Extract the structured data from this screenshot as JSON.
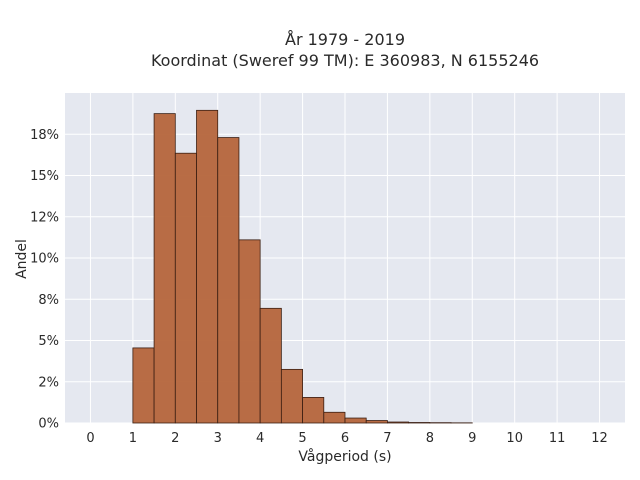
{
  "chart_data": {
    "type": "bar",
    "title_line1": "År 1979 - 2019",
    "title_line2": "Koordinat (Sweref 99 TM): E 360983, N 6155246",
    "xlabel": "Vågperiod (s)",
    "ylabel": "Andel",
    "xlim": [
      -0.6,
      12.6
    ],
    "ylim": [
      0,
      0.2
    ],
    "x_ticks": [
      0,
      1,
      2,
      3,
      4,
      5,
      6,
      7,
      8,
      9,
      10,
      11,
      12
    ],
    "x_tick_labels": [
      "0",
      "1",
      "2",
      "3",
      "4",
      "5",
      "6",
      "7",
      "8",
      "9",
      "10",
      "11",
      "12"
    ],
    "y_ticks": [
      0,
      0.025,
      0.05,
      0.075,
      0.1,
      0.125,
      0.15,
      0.175
    ],
    "y_tick_labels": [
      "0%",
      "2%",
      "5%",
      "8%",
      "10%",
      "12%",
      "15%",
      "18%"
    ],
    "bin_width": 0.5,
    "bins": [
      {
        "x0": 1.0,
        "x1": 1.5,
        "value": 0.0455
      },
      {
        "x0": 1.5,
        "x1": 2.0,
        "value": 0.1875
      },
      {
        "x0": 2.0,
        "x1": 2.5,
        "value": 0.1635
      },
      {
        "x0": 2.5,
        "x1": 3.0,
        "value": 0.1895
      },
      {
        "x0": 3.0,
        "x1": 3.5,
        "value": 0.173
      },
      {
        "x0": 3.5,
        "x1": 4.0,
        "value": 0.111
      },
      {
        "x0": 4.0,
        "x1": 4.5,
        "value": 0.0695
      },
      {
        "x0": 4.5,
        "x1": 5.0,
        "value": 0.0325
      },
      {
        "x0": 5.0,
        "x1": 5.5,
        "value": 0.0155
      },
      {
        "x0": 5.5,
        "x1": 6.0,
        "value": 0.0065
      },
      {
        "x0": 6.0,
        "x1": 6.5,
        "value": 0.003
      },
      {
        "x0": 6.5,
        "x1": 7.0,
        "value": 0.0015
      },
      {
        "x0": 7.0,
        "x1": 7.5,
        "value": 0.0006
      },
      {
        "x0": 7.5,
        "x1": 8.0,
        "value": 0.0003
      },
      {
        "x0": 8.0,
        "x1": 8.5,
        "value": 0.0002
      },
      {
        "x0": 8.5,
        "x1": 9.0,
        "value": 0.0001
      }
    ],
    "bar_color": "#b5653b",
    "bar_edge_color": "#3a1e12",
    "plot_bg_color": "#e5e8f0",
    "grid_color": "#ffffff",
    "grid": true
  }
}
